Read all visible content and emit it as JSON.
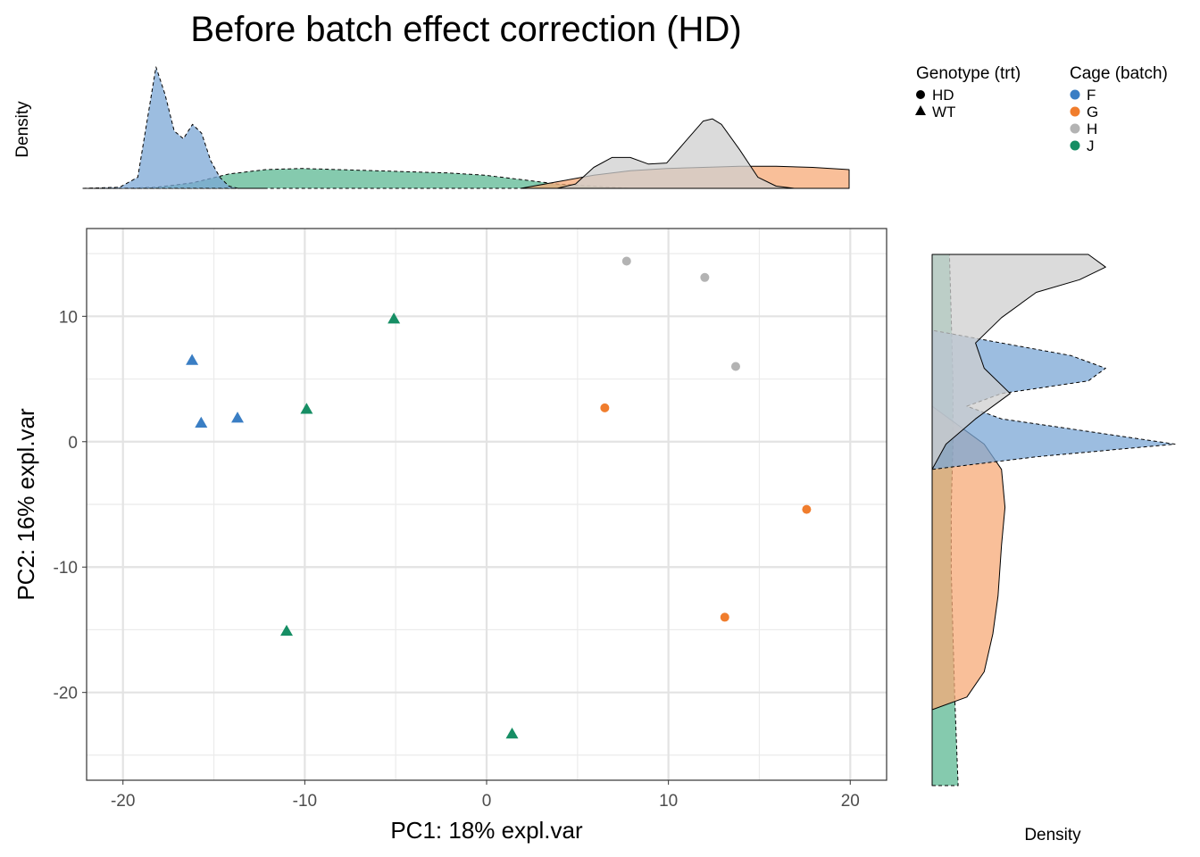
{
  "title": "Before batch effect correction (HD)",
  "chart_data": [
    {
      "type": "scatter",
      "name": "main",
      "xlabel": "PC1: 18% expl.var",
      "ylabel": "PC2: 16% expl.var",
      "xlim": [
        -22,
        22
      ],
      "ylim": [
        -27,
        17
      ],
      "x_ticks": [
        -20,
        -10,
        0,
        10,
        20
      ],
      "x_tick_labels": [
        "-20",
        "-10",
        "0",
        "10",
        "20"
      ],
      "y_ticks": [
        10,
        0,
        -10,
        -20
      ],
      "y_tick_labels": [
        "10",
        "0",
        "-10",
        "-20"
      ],
      "grid": true,
      "points": [
        {
          "x": 7.7,
          "y": 14.4,
          "cage": "H",
          "genotype": "HD"
        },
        {
          "x": 12.0,
          "y": 13.1,
          "cage": "H",
          "genotype": "HD"
        },
        {
          "x": 13.7,
          "y": 6.0,
          "cage": "H",
          "genotype": "HD"
        },
        {
          "x": 6.5,
          "y": 2.7,
          "cage": "G",
          "genotype": "HD"
        },
        {
          "x": 17.6,
          "y": -5.4,
          "cage": "G",
          "genotype": "HD"
        },
        {
          "x": 13.1,
          "y": -14.0,
          "cage": "G",
          "genotype": "HD"
        },
        {
          "x": -5.1,
          "y": 9.8,
          "cage": "J",
          "genotype": "WT"
        },
        {
          "x": -9.9,
          "y": 2.6,
          "cage": "J",
          "genotype": "WT"
        },
        {
          "x": -11.0,
          "y": -15.1,
          "cage": "J",
          "genotype": "WT"
        },
        {
          "x": 1.4,
          "y": -23.3,
          "cage": "J",
          "genotype": "WT"
        },
        {
          "x": -16.2,
          "y": 6.5,
          "cage": "F",
          "genotype": "WT"
        },
        {
          "x": -15.7,
          "y": 1.5,
          "cage": "F",
          "genotype": "WT"
        },
        {
          "x": -13.7,
          "y": 1.9,
          "cage": "F",
          "genotype": "WT"
        }
      ]
    },
    {
      "type": "area",
      "name": "top-density",
      "ylabel": "Density",
      "x_range": [
        -22,
        20
      ],
      "series": [
        {
          "name": "J",
          "x": [
            -22,
            -20,
            -18,
            -16,
            -14,
            -12,
            -10,
            -8,
            -6,
            -4,
            -2,
            0,
            2,
            4,
            6,
            8,
            10,
            12,
            14,
            16,
            18,
            20
          ],
          "values": [
            0.0,
            0.0,
            0.001,
            0.005,
            0.013,
            0.017,
            0.018,
            0.017,
            0.016,
            0.015,
            0.014,
            0.012,
            0.008,
            0.004,
            0.002,
            0.0,
            0.0,
            0.0,
            0.0,
            0.0,
            0.0,
            0.0
          ]
        },
        {
          "name": "F",
          "x": [
            -22,
            -20,
            -19,
            -18.5,
            -18,
            -17.5,
            -17,
            -16.5,
            -16,
            -15.5,
            -15,
            -14.5,
            -14,
            -13.5,
            -13,
            -12
          ],
          "values": [
            0.0,
            0.001,
            0.01,
            0.06,
            0.11,
            0.085,
            0.052,
            0.045,
            0.058,
            0.05,
            0.025,
            0.01,
            0.002,
            0.0,
            0.0,
            0.0
          ]
        },
        {
          "name": "G",
          "x": [
            2,
            4,
            6,
            8,
            10,
            12,
            14,
            16,
            18,
            20
          ],
          "values": [
            0.0,
            0.006,
            0.012,
            0.016,
            0.018,
            0.019,
            0.02,
            0.02,
            0.019,
            0.017
          ]
        },
        {
          "name": "H",
          "x": [
            4,
            5,
            6,
            7,
            8,
            9,
            10,
            11,
            12,
            12.5,
            13,
            14,
            15,
            16,
            17,
            18,
            20
          ],
          "values": [
            0.0,
            0.004,
            0.019,
            0.028,
            0.028,
            0.022,
            0.023,
            0.042,
            0.061,
            0.063,
            0.058,
            0.035,
            0.01,
            0.002,
            0.0,
            0.0,
            0.0
          ]
        }
      ]
    },
    {
      "type": "area",
      "name": "right-density",
      "xlabel": "Density",
      "y_range": [
        -27,
        15
      ],
      "series": [
        {
          "name": "J",
          "y": [
            -27,
            -20,
            -15,
            -10,
            -5,
            0,
            5,
            10,
            15
          ],
          "values": [
            0.015,
            0.013,
            0.012,
            0.011,
            0.011,
            0.012,
            0.012,
            0.011,
            0.01
          ]
        },
        {
          "name": "G",
          "y": [
            -27,
            -21,
            -20,
            -18,
            -15,
            -12,
            -8,
            -5,
            -2,
            0,
            2,
            3
          ],
          "values": [
            0.0,
            0.0,
            0.02,
            0.03,
            0.035,
            0.038,
            0.04,
            0.042,
            0.04,
            0.03,
            0.01,
            0.0
          ]
        },
        {
          "name": "F",
          "y": [
            -2,
            -1,
            0,
            1,
            2,
            3,
            4,
            5,
            6,
            7,
            8,
            9
          ],
          "values": [
            0.0,
            0.06,
            0.14,
            0.09,
            0.04,
            0.02,
            0.04,
            0.09,
            0.1,
            0.08,
            0.04,
            0.0
          ]
        },
        {
          "name": "H",
          "y": [
            -2,
            0,
            2,
            4,
            6,
            8,
            10,
            12,
            13,
            14,
            15
          ],
          "values": [
            0.0,
            0.008,
            0.025,
            0.045,
            0.03,
            0.025,
            0.04,
            0.06,
            0.085,
            0.1,
            0.09
          ]
        }
      ]
    }
  ],
  "legend": {
    "genotype": {
      "title": "Genotype (trt)",
      "items": [
        {
          "label": "HD",
          "shape": "circle"
        },
        {
          "label": "WT",
          "shape": "triangle"
        }
      ]
    },
    "cage": {
      "title": "Cage (batch)",
      "items": [
        {
          "label": "F",
          "color": "#3a7ec4"
        },
        {
          "label": "G",
          "color": "#f07d2d"
        },
        {
          "label": "H",
          "color": "#b3b3b3"
        },
        {
          "label": "J",
          "color": "#168e64"
        }
      ]
    }
  },
  "colors": {
    "F": "#3a7ec4",
    "G": "#f07d2d",
    "H": "#b3b3b3",
    "J": "#168e64",
    "F_fill": "#7ba7d6",
    "G_fill": "#f7a977",
    "H_fill": "#cfcfcf",
    "J_fill": "#5cb893"
  }
}
